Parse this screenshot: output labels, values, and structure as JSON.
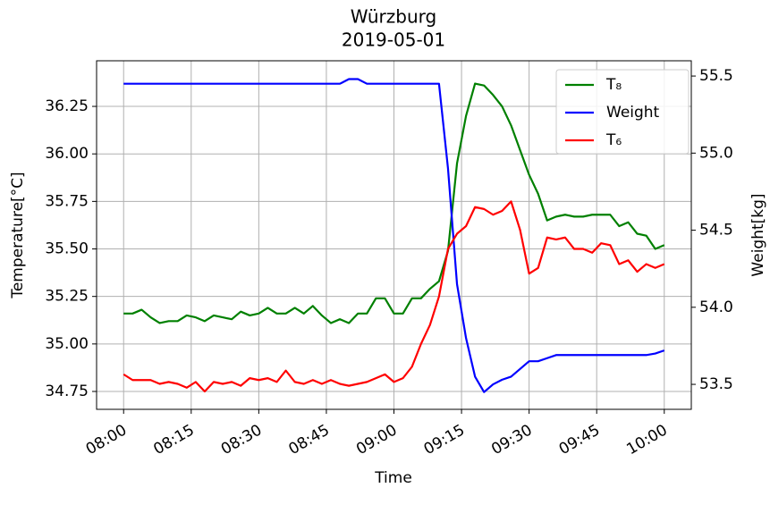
{
  "chart_data": {
    "type": "line",
    "title": "Würzburg",
    "subtitle": "2019-05-01",
    "x_label": "Time",
    "y_label": "Temperature[°C]",
    "y2_label": "Weight[kg]",
    "x": [
      "08:00",
      "08:02",
      "08:04",
      "08:06",
      "08:08",
      "08:10",
      "08:12",
      "08:14",
      "08:16",
      "08:18",
      "08:20",
      "08:22",
      "08:24",
      "08:26",
      "08:28",
      "08:30",
      "08:32",
      "08:34",
      "08:36",
      "08:38",
      "08:40",
      "08:42",
      "08:44",
      "08:46",
      "08:48",
      "08:50",
      "08:52",
      "08:54",
      "08:56",
      "08:58",
      "09:00",
      "09:02",
      "09:04",
      "09:06",
      "09:08",
      "09:10",
      "09:12",
      "09:14",
      "09:16",
      "09:18",
      "09:20",
      "09:22",
      "09:24",
      "09:26",
      "09:28",
      "09:30",
      "09:32",
      "09:34",
      "09:36",
      "09:38",
      "09:40",
      "09:42",
      "09:44",
      "09:46",
      "09:48",
      "09:50",
      "09:52",
      "09:54",
      "09:56",
      "09:58",
      "10:00"
    ],
    "xlim": [
      "07:54",
      "10:06"
    ],
    "xticks": [
      "08:00",
      "08:15",
      "08:30",
      "08:45",
      "09:00",
      "09:15",
      "09:30",
      "09:45",
      "10:00"
    ],
    "ylim": [
      34.656,
      36.49
    ],
    "yticks": [
      34.75,
      {
        "value": 35,
        "label": "35.00"
      },
      35.25,
      {
        "value": 35.5,
        "label": "35.50"
      },
      35.75,
      {
        "value": 36,
        "label": "36.00"
      },
      36.25
    ],
    "y2lim": [
      53.338,
      55.599
    ],
    "y2ticks": [
      53.5,
      {
        "value": 54,
        "label": "54.0"
      },
      54.5,
      {
        "value": 55,
        "label": "55.0"
      },
      55.5
    ],
    "grid": true,
    "legend": "upper right",
    "series": [
      {
        "name": "T₈",
        "color": "#008000",
        "values": [
          35.16,
          35.16,
          35.18,
          35.14,
          35.11,
          35.12,
          35.12,
          35.15,
          35.14,
          35.12,
          35.15,
          35.14,
          35.13,
          35.17,
          35.15,
          35.16,
          35.19,
          35.16,
          35.16,
          35.19,
          35.16,
          35.2,
          35.15,
          35.11,
          35.13,
          35.11,
          35.16,
          35.16,
          35.24,
          35.24,
          35.16,
          35.16,
          35.24,
          35.24,
          35.29,
          35.33,
          35.49,
          35.95,
          36.2,
          36.37,
          36.36,
          36.31,
          36.25,
          36.15,
          36.02,
          35.89,
          35.79,
          35.65,
          35.67,
          35.68,
          35.67,
          35.67,
          35.68,
          35.68,
          35.68,
          35.62,
          35.64,
          35.58,
          35.57,
          35.5,
          35.52
        ]
      },
      {
        "name": "Weight",
        "color": "#0000ff",
        "axis": "y2",
        "values": [
          55.45,
          55.45,
          55.45,
          55.45,
          55.45,
          55.45,
          55.45,
          55.45,
          55.45,
          55.45,
          55.45,
          55.45,
          55.45,
          55.45,
          55.45,
          55.45,
          55.45,
          55.45,
          55.45,
          55.45,
          55.45,
          55.45,
          55.45,
          55.45,
          55.45,
          55.48,
          55.48,
          55.45,
          55.45,
          55.45,
          55.45,
          55.45,
          55.45,
          55.45,
          55.45,
          55.45,
          54.9,
          54.15,
          53.8,
          53.55,
          53.45,
          53.5,
          53.53,
          53.55,
          53.6,
          53.65,
          53.65,
          53.67,
          53.69,
          53.69,
          53.69,
          53.69,
          53.69,
          53.69,
          53.69,
          53.69,
          53.69,
          53.69,
          53.69,
          53.7,
          53.72
        ]
      },
      {
        "name": "T₆",
        "color": "#ff0000",
        "values": [
          34.84,
          34.81,
          34.81,
          34.81,
          34.79,
          34.8,
          34.79,
          34.77,
          34.8,
          34.75,
          34.8,
          34.79,
          34.8,
          34.78,
          34.82,
          34.81,
          34.82,
          34.8,
          34.86,
          34.8,
          34.79,
          34.81,
          34.79,
          34.81,
          34.79,
          34.78,
          34.79,
          34.8,
          34.82,
          34.84,
          34.8,
          34.82,
          34.88,
          35.0,
          35.1,
          35.25,
          35.5,
          35.58,
          35.62,
          35.72,
          35.71,
          35.68,
          35.7,
          35.75,
          35.6,
          35.37,
          35.4,
          35.56,
          35.55,
          35.56,
          35.5,
          35.5,
          35.48,
          35.53,
          35.52,
          35.42,
          35.44,
          35.38,
          35.42,
          35.4,
          35.42
        ]
      }
    ]
  }
}
